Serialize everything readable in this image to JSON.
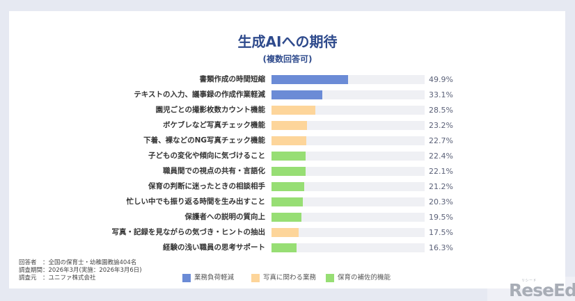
{
  "page": {
    "background": "#e6e9f2",
    "card_background": "#ffffff"
  },
  "header": {
    "title": "生成AIへの期待",
    "subtitle": "(複数回答可)"
  },
  "chart_data": {
    "type": "bar",
    "orientation": "horizontal",
    "title": "生成AIへの期待",
    "subtitle": "(複数回答可)",
    "xlabel": "",
    "ylabel": "",
    "xlim": [
      0,
      100
    ],
    "grid": false,
    "legend_position": "bottom",
    "track_color": "#eff0f4",
    "categories": [
      "書類作成の時間短縮",
      "テキストの入力、議事録の作成作業軽減",
      "園児ごとの撮影枚数カウント機能",
      "ボケブレなど写真チェック機能",
      "下着、裸などのNG写真チェック機能",
      "子どもの変化や傾向に気づけること",
      "職員間での視点の共有・言語化",
      "保育の判断に迷ったときの相談相手",
      "忙しい中でも振り返る時間を生み出すこと",
      "保護者への説明の質向上",
      "写真・記録を見ながらの気づき・ヒントの抽出",
      "経験の浅い職員の思考サポート"
    ],
    "values": [
      49.9,
      33.1,
      28.5,
      23.2,
      22.7,
      22.4,
      22.1,
      21.2,
      20.3,
      19.5,
      17.5,
      16.3
    ],
    "value_labels": [
      "49.9%",
      "33.1%",
      "28.5%",
      "23.2%",
      "22.7%",
      "22.4%",
      "22.1%",
      "21.2%",
      "20.3%",
      "19.5%",
      "17.5%",
      "16.3%"
    ],
    "groups": [
      "業務負荷軽減",
      "業務負荷軽減",
      "写真に関わる業務",
      "写真に関わる業務",
      "写真に関わる業務",
      "保育の補佐的機能",
      "保育の補佐的機能",
      "保育の補佐的機能",
      "保育の補佐的機能",
      "保育の補佐的機能",
      "写真に関わる業務",
      "保育の補佐的機能"
    ],
    "colors": [
      "#6b8bd6",
      "#6b8bd6",
      "#fdd59a",
      "#fdd59a",
      "#fdd59a",
      "#97de74",
      "#97de74",
      "#97de74",
      "#97de74",
      "#97de74",
      "#fdd59a",
      "#97de74"
    ],
    "legend": [
      {
        "label": "業務負荷軽減",
        "color": "#6b8bd6"
      },
      {
        "label": "写真に関わる業務",
        "color": "#fdd59a"
      },
      {
        "label": "保育の補佐的機能",
        "color": "#97de74"
      }
    ]
  },
  "footer": {
    "lines": [
      "回答者　：全国の保育士・幼稚園教諭404名",
      "調査期間：2026年3月(実施：2026年3月6日)",
      "調査元　：ユニファ株式会社"
    ]
  },
  "watermark": {
    "logo": "ReseEd",
    "ruby": "リシード"
  }
}
